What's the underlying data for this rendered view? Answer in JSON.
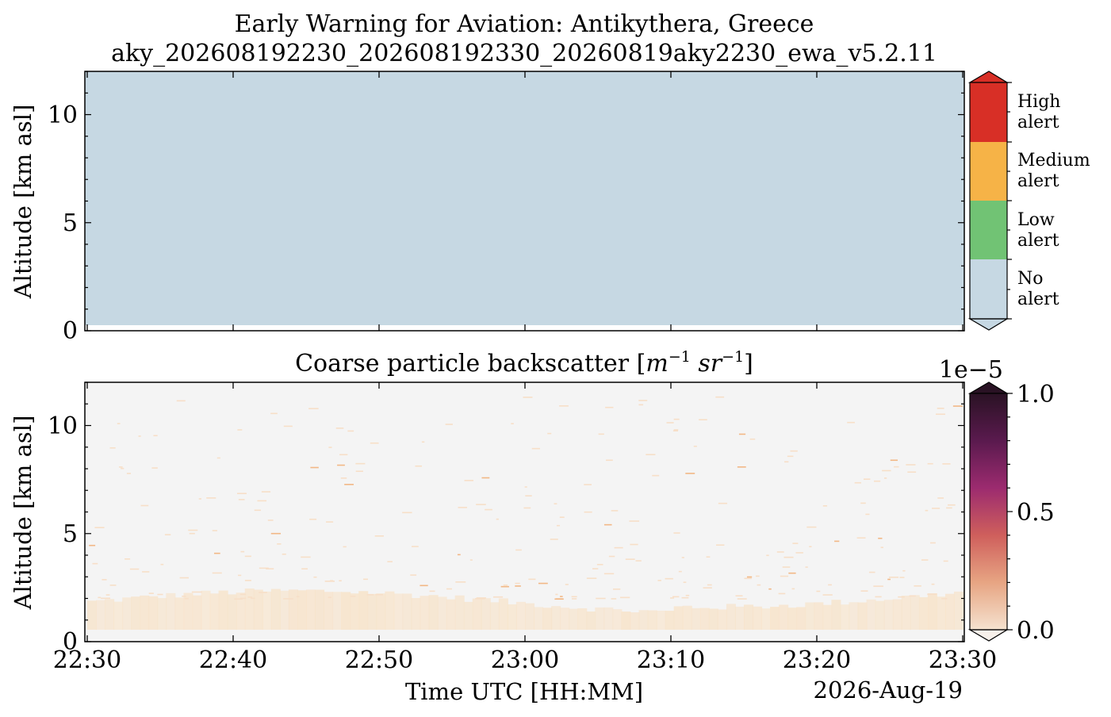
{
  "chart_data": [
    {
      "type": "heatmap",
      "title": "Early Warning for Aviation: Antikythera, Greece",
      "subtitle": "aky_202608192230_202608192330_20260819aky2230_ewa_v5.2.11",
      "ylabel": "Altitude [km asl]",
      "ylim": [
        0,
        12
      ],
      "yticks": [
        "0",
        "5",
        "10"
      ],
      "xlim": [
        "22:30",
        "23:30"
      ],
      "values_summary": "No alert over the full time and altitude range",
      "colorbar": {
        "categories": [
          {
            "label": "No alert",
            "color": "#c6d8e3"
          },
          {
            "label": "Low alert",
            "color": "#71c374"
          },
          {
            "label": "Medium alert",
            "color": "#f6b347"
          },
          {
            "label": "High alert",
            "color": "#d82f26"
          }
        ]
      }
    },
    {
      "type": "heatmap",
      "title": "Coarse particle backscatter [m⁻¹ sr⁻¹]",
      "title_text": "Coarse particle backscatter [",
      "title_unit_m": "m",
      "title_exp_1": "−1",
      "title_unit_sr": "sr",
      "title_exp_2": "−1",
      "title_close": "]",
      "ylabel": "Altitude [km asl]",
      "xlabel": "Time UTC [HH:MM]",
      "date_label": "2026-Aug-19",
      "ylim": [
        0,
        12
      ],
      "yticks": [
        "0",
        "5",
        "10"
      ],
      "xticks": [
        "22:30",
        "22:40",
        "22:50",
        "23:00",
        "23:10",
        "23:20",
        "23:30"
      ],
      "aerosol_layer_top_km": 2.0,
      "sparse_signal_max_km": 11.5,
      "colorbar": {
        "label_range": [
          0.0,
          1.0
        ],
        "multiplier": "1e−5",
        "ticks": [
          "0.0",
          "0.5",
          "1.0"
        ],
        "colors": [
          "#f5e2cf",
          "#e7a583",
          "#cf5f5c",
          "#9c2b6f",
          "#5a1a4e",
          "#2a1224"
        ]
      },
      "background_color": "#f4f4f4",
      "signal_color": "#f7e4cc"
    }
  ]
}
